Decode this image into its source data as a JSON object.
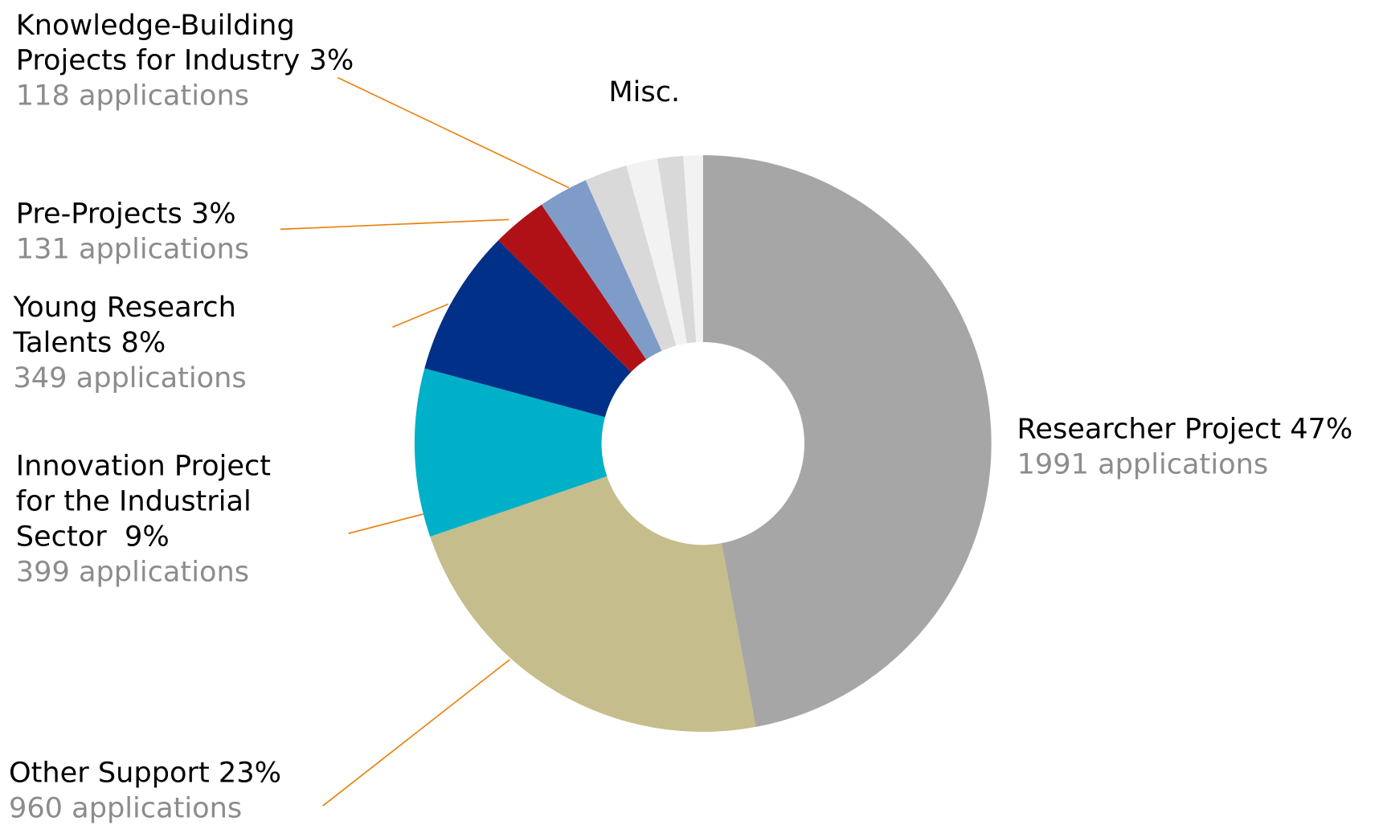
{
  "chart_data": {
    "type": "donut",
    "categories": [
      "Researcher Project 47%",
      "Other Support 23%",
      "Innovation Project\nfor the Industrial\nSector  9%",
      "Young Research\nTalents 8%",
      "Pre-Projects 3%",
      "Knowledge-Building\nProjects for Industry 3%",
      null,
      null,
      null,
      null
    ],
    "values": [
      1991,
      960,
      399,
      349,
      131,
      118,
      101,
      74,
      61,
      46
    ],
    "value_labels": [
      "1991 applications",
      "960 applications",
      "399 applications",
      "349 applications",
      "131 applications",
      "118 applications",
      null,
      null,
      null,
      null
    ],
    "colors": [
      "#a6a6a6",
      "#c5bd8b",
      "#00b0c8",
      "#003087",
      "#b01116",
      "#7f9cc8",
      "#d9d9d9",
      "#f2f2f2",
      "#d9d9d9",
      "#f2f2f2"
    ],
    "annotation": "Misc."
  }
}
